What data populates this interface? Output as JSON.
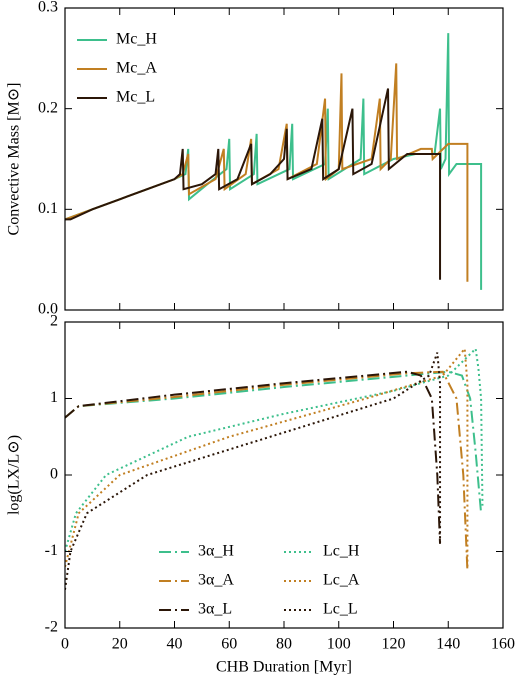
{
  "chart_data": [
    {
      "type": "line",
      "ylabel": "Convective Mass [M⊙]",
      "xlim": [
        0,
        160
      ],
      "xticks": [
        0,
        20,
        40,
        60,
        80,
        100,
        120,
        140,
        160
      ],
      "xtick_labels": false,
      "ylim": [
        0,
        0.3
      ],
      "yticks": [
        {
          "value": 0,
          "label": "0.0"
        },
        0.1,
        0.2,
        0.3
      ],
      "legend": "upper left",
      "legend_columns": 1,
      "series": [
        {
          "name": "Mc_H",
          "color": "#3dbf8c",
          "style": "solid",
          "x": [
            0,
            10,
            20,
            30,
            40,
            44,
            45,
            45.3,
            52,
            59,
            60,
            60.3,
            69,
            70,
            70.3,
            82,
            83,
            83.3,
            95,
            96,
            96.3,
            108,
            109,
            109.3,
            120,
            128,
            135,
            137,
            137.3,
            139,
            140,
            140.3,
            143,
            152,
            152
          ],
          "values": [
            0.09,
            0.1,
            0.11,
            0.12,
            0.13,
            0.135,
            0.16,
            0.11,
            0.125,
            0.14,
            0.17,
            0.12,
            0.135,
            0.175,
            0.125,
            0.14,
            0.185,
            0.13,
            0.145,
            0.2,
            0.13,
            0.15,
            0.21,
            0.135,
            0.15,
            0.155,
            0.155,
            0.2,
            0.14,
            0.15,
            0.275,
            0.135,
            0.145,
            0.145,
            0.02
          ]
        },
        {
          "name": "Mc_A",
          "color": "#c17f22",
          "style": "solid",
          "x": [
            0,
            10,
            20,
            30,
            40,
            43,
            45,
            45.3,
            55,
            58,
            58.3,
            66,
            68,
            68.3,
            78,
            81,
            81.3,
            92,
            95,
            95.3,
            100,
            101,
            101.3,
            112,
            115,
            115.3,
            119,
            121,
            121.3,
            130,
            134,
            134.3,
            140,
            147,
            147
          ],
          "values": [
            0.09,
            0.1,
            0.11,
            0.12,
            0.13,
            0.135,
            0.155,
            0.115,
            0.13,
            0.16,
            0.12,
            0.135,
            0.17,
            0.125,
            0.14,
            0.185,
            0.13,
            0.145,
            0.21,
            0.13,
            0.14,
            0.235,
            0.14,
            0.15,
            0.21,
            0.14,
            0.15,
            0.245,
            0.15,
            0.16,
            0.16,
            0.15,
            0.165,
            0.165,
            0.028
          ]
        },
        {
          "name": "Mc_L",
          "color": "#2b1608",
          "style": "solid",
          "x": [
            0,
            2,
            10,
            20,
            30,
            40,
            42,
            43,
            43.3,
            50,
            55,
            56,
            56.3,
            63,
            68,
            68.3,
            75,
            80,
            81,
            81.3,
            90,
            94,
            94.3,
            100,
            105,
            105.3,
            112,
            118,
            118.3,
            125,
            133,
            137,
            137
          ],
          "values": [
            0.09,
            0.09,
            0.1,
            0.11,
            0.12,
            0.13,
            0.135,
            0.16,
            0.12,
            0.125,
            0.135,
            0.16,
            0.12,
            0.13,
            0.165,
            0.125,
            0.135,
            0.15,
            0.18,
            0.13,
            0.14,
            0.19,
            0.13,
            0.14,
            0.2,
            0.135,
            0.145,
            0.22,
            0.14,
            0.155,
            0.155,
            0.155,
            0.03
          ]
        }
      ]
    },
    {
      "type": "line",
      "ylabel": "log(LX/L⊙)",
      "xlabel": "CHB Duration [Myr]",
      "xlim": [
        0,
        160
      ],
      "xticks": [
        0,
        20,
        40,
        60,
        80,
        100,
        120,
        140,
        160
      ],
      "xtick_labels": true,
      "ylim": [
        -2,
        2
      ],
      "yticks": [
        -2,
        -1,
        0,
        1,
        2
      ],
      "legend": "lower center",
      "legend_columns": 2,
      "series": [
        {
          "name": "3α_H",
          "color": "#3dbf8c",
          "style": "dashdot",
          "x": [
            0,
            5,
            40,
            80,
            125,
            140,
            145,
            148,
            150,
            152
          ],
          "values": [
            0.75,
            0.9,
            1.0,
            1.15,
            1.3,
            1.35,
            1.3,
            1.0,
            0.3,
            -0.5
          ]
        },
        {
          "name": "3α_A",
          "color": "#c17f22",
          "style": "dashdot",
          "x": [
            0,
            5,
            40,
            80,
            125,
            138,
            143,
            145.5,
            147
          ],
          "values": [
            0.75,
            0.9,
            1.02,
            1.18,
            1.33,
            1.35,
            1.0,
            0,
            -1.25
          ]
        },
        {
          "name": "3α_L",
          "color": "#2b1608",
          "style": "dashdot",
          "x": [
            0,
            5,
            40,
            80,
            125,
            130,
            134,
            136,
            137
          ],
          "values": [
            0.75,
            0.9,
            1.05,
            1.2,
            1.35,
            1.3,
            1.0,
            0,
            -0.9
          ]
        },
        {
          "name": "Lc_H",
          "color": "#3dbf8c",
          "style": "dotted",
          "x": [
            0,
            4,
            15,
            45,
            80,
            120,
            140,
            150,
            151,
            152,
            152.5
          ],
          "values": [
            -1,
            -0.5,
            0,
            0.5,
            0.8,
            1.1,
            1.3,
            1.65,
            1.4,
            1.0,
            -0.4
          ]
        },
        {
          "name": "Lc_A",
          "color": "#c17f22",
          "style": "dotted",
          "x": [
            0,
            5,
            20,
            60,
            110,
            138,
            146,
            147,
            147
          ],
          "values": [
            -1.2,
            -0.5,
            0,
            0.5,
            1.0,
            1.3,
            1.65,
            1.2,
            -1.2
          ]
        },
        {
          "name": "Lc_L",
          "color": "#2b1608",
          "style": "dotted",
          "x": [
            0,
            2,
            8,
            30,
            75,
            120,
            133,
            136,
            137,
            137
          ],
          "values": [
            -1.5,
            -1,
            -0.5,
            0,
            0.5,
            1.0,
            1.3,
            1.6,
            1.2,
            -0.9
          ]
        }
      ]
    }
  ]
}
